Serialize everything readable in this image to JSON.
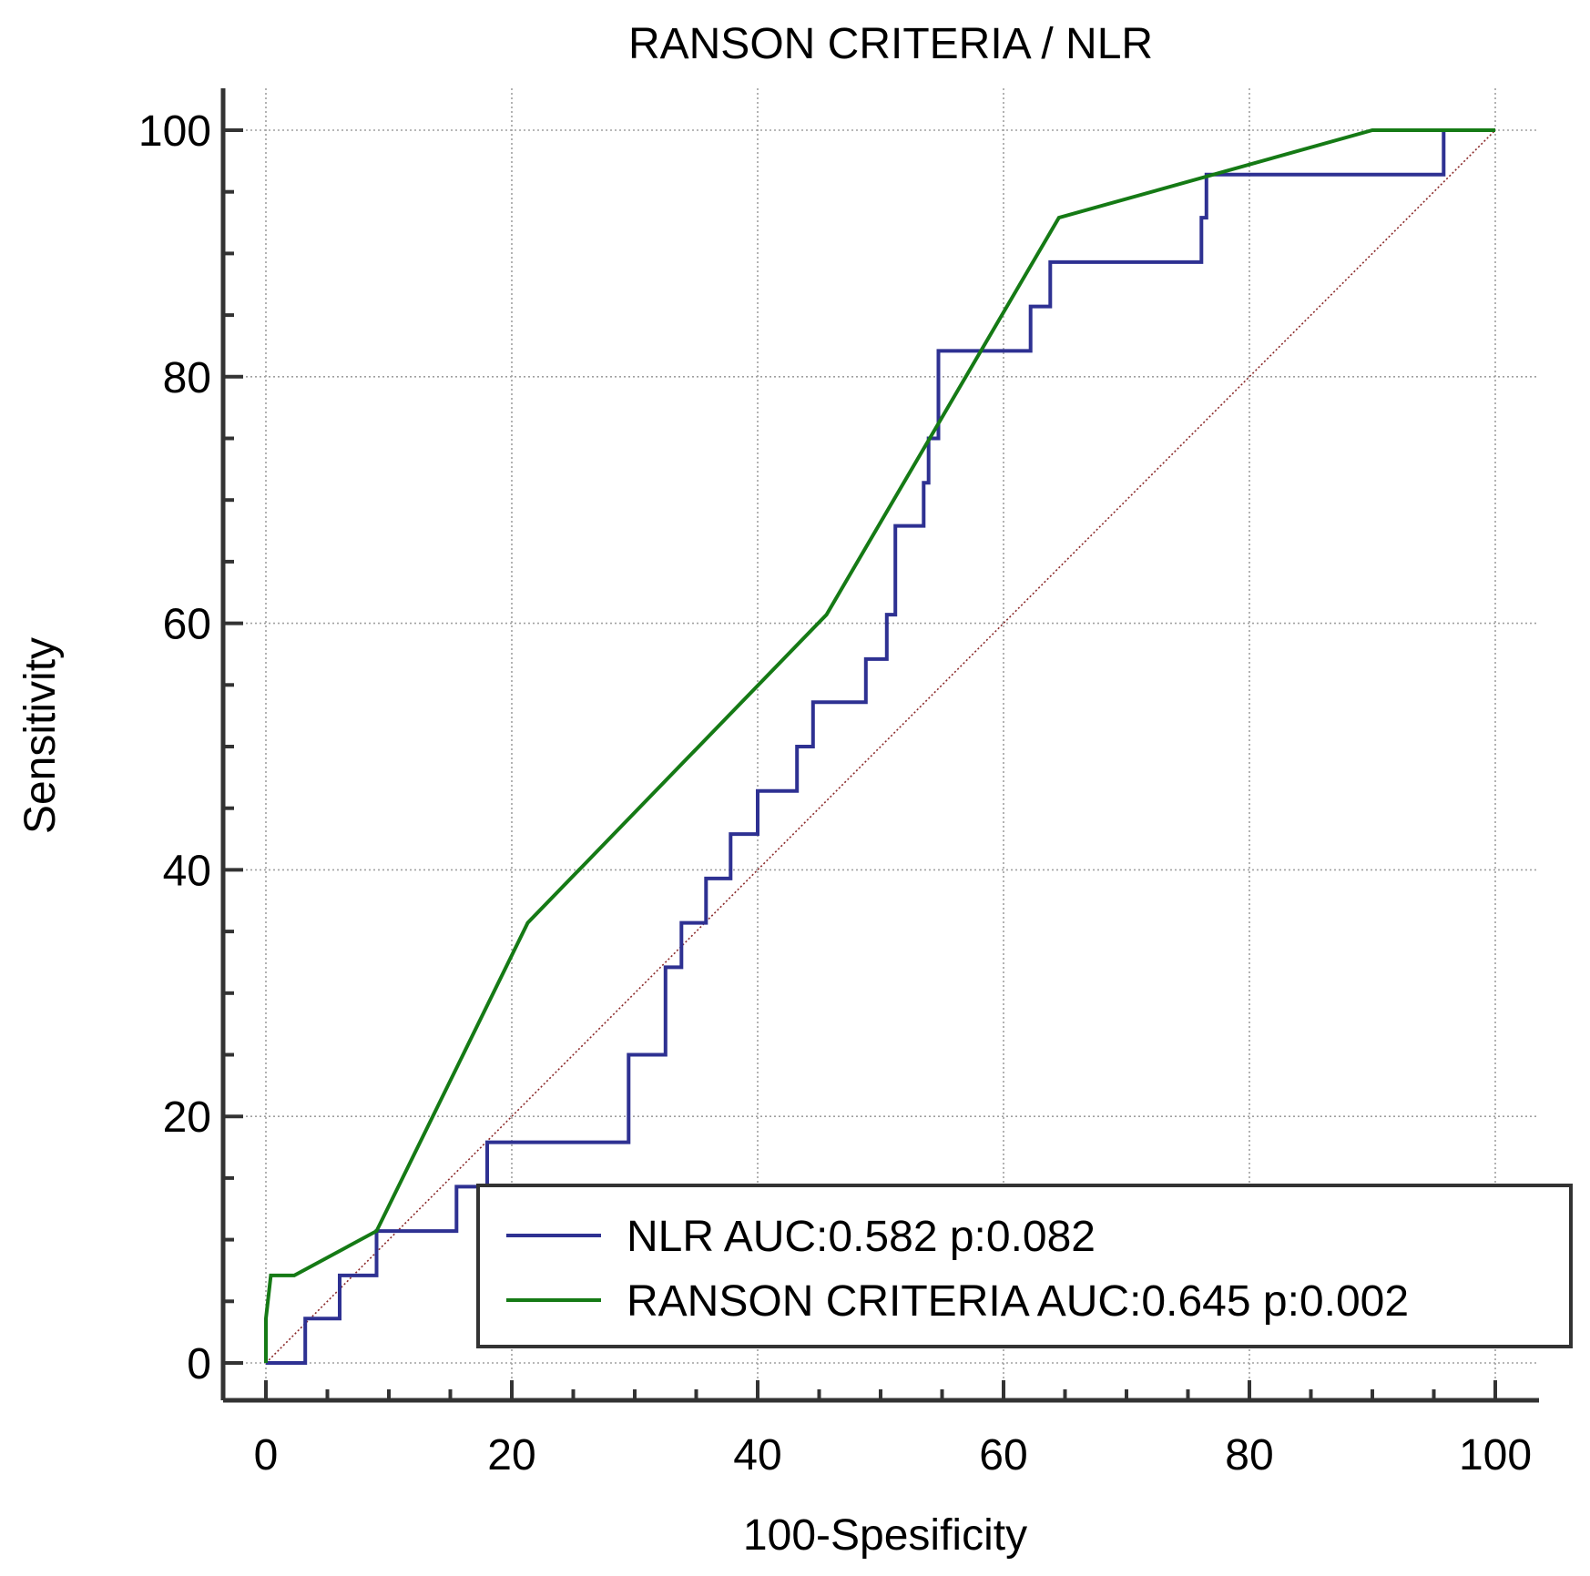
{
  "chart_data": {
    "type": "line",
    "title": "RANSON CRITERIA / NLR",
    "xlabel": "100-Spesificity",
    "ylabel": "Sensitivity",
    "xlim": [
      0,
      100
    ],
    "ylim": [
      0,
      100
    ],
    "x_ticks": [
      "0",
      "20",
      "40",
      "60",
      "80",
      "100"
    ],
    "y_ticks": [
      "0",
      "20",
      "40",
      "60",
      "80",
      "100"
    ],
    "grid": true,
    "legend_position": "bottom-right",
    "reference_line": {
      "points": [
        [
          0,
          0
        ],
        [
          100,
          100
        ]
      ],
      "color": "#8b2a2a",
      "style": "dotted"
    },
    "series": [
      {
        "name": "NLR AUC:0.582 p:0.082",
        "color": "#2e3192",
        "points": [
          [
            0,
            0
          ],
          [
            3.2,
            0
          ],
          [
            3.2,
            3.6
          ],
          [
            6,
            3.6
          ],
          [
            6,
            7.1
          ],
          [
            9,
            7.1
          ],
          [
            9,
            10.7
          ],
          [
            15.5,
            10.7
          ],
          [
            15.5,
            14.3
          ],
          [
            18,
            14.3
          ],
          [
            18,
            17.9
          ],
          [
            29.5,
            17.9
          ],
          [
            29.5,
            25
          ],
          [
            32.5,
            25
          ],
          [
            32.5,
            32.1
          ],
          [
            33.8,
            32.1
          ],
          [
            33.8,
            35.7
          ],
          [
            35.8,
            35.7
          ],
          [
            35.8,
            39.3
          ],
          [
            37.8,
            39.3
          ],
          [
            37.8,
            42.9
          ],
          [
            40,
            42.9
          ],
          [
            40,
            46.4
          ],
          [
            43.2,
            46.4
          ],
          [
            43.2,
            50
          ],
          [
            44.5,
            50
          ],
          [
            44.5,
            53.6
          ],
          [
            48.8,
            53.6
          ],
          [
            48.8,
            57.1
          ],
          [
            50.5,
            57.1
          ],
          [
            50.5,
            60.7
          ],
          [
            51.2,
            60.7
          ],
          [
            51.2,
            67.9
          ],
          [
            53.5,
            67.9
          ],
          [
            53.5,
            71.4
          ],
          [
            53.9,
            71.4
          ],
          [
            53.9,
            75
          ],
          [
            54.7,
            75
          ],
          [
            54.7,
            82.1
          ],
          [
            62.2,
            82.1
          ],
          [
            62.2,
            85.7
          ],
          [
            63.8,
            85.7
          ],
          [
            63.8,
            89.3
          ],
          [
            76.1,
            89.3
          ],
          [
            76.1,
            92.9
          ],
          [
            76.5,
            92.9
          ],
          [
            76.5,
            96.4
          ],
          [
            95.8,
            96.4
          ],
          [
            95.8,
            100
          ],
          [
            100,
            100
          ]
        ]
      },
      {
        "name": "RANSON CRITERIA AUC:0.645 p:0.002",
        "color": "#157a15",
        "points": [
          [
            0,
            0
          ],
          [
            0,
            3.6
          ],
          [
            0.4,
            7.1
          ],
          [
            2.3,
            7.1
          ],
          [
            9,
            10.7
          ],
          [
            21.3,
            35.7
          ],
          [
            45.6,
            60.7
          ],
          [
            64.5,
            92.9
          ],
          [
            90,
            100
          ],
          [
            100,
            100
          ]
        ]
      }
    ]
  }
}
